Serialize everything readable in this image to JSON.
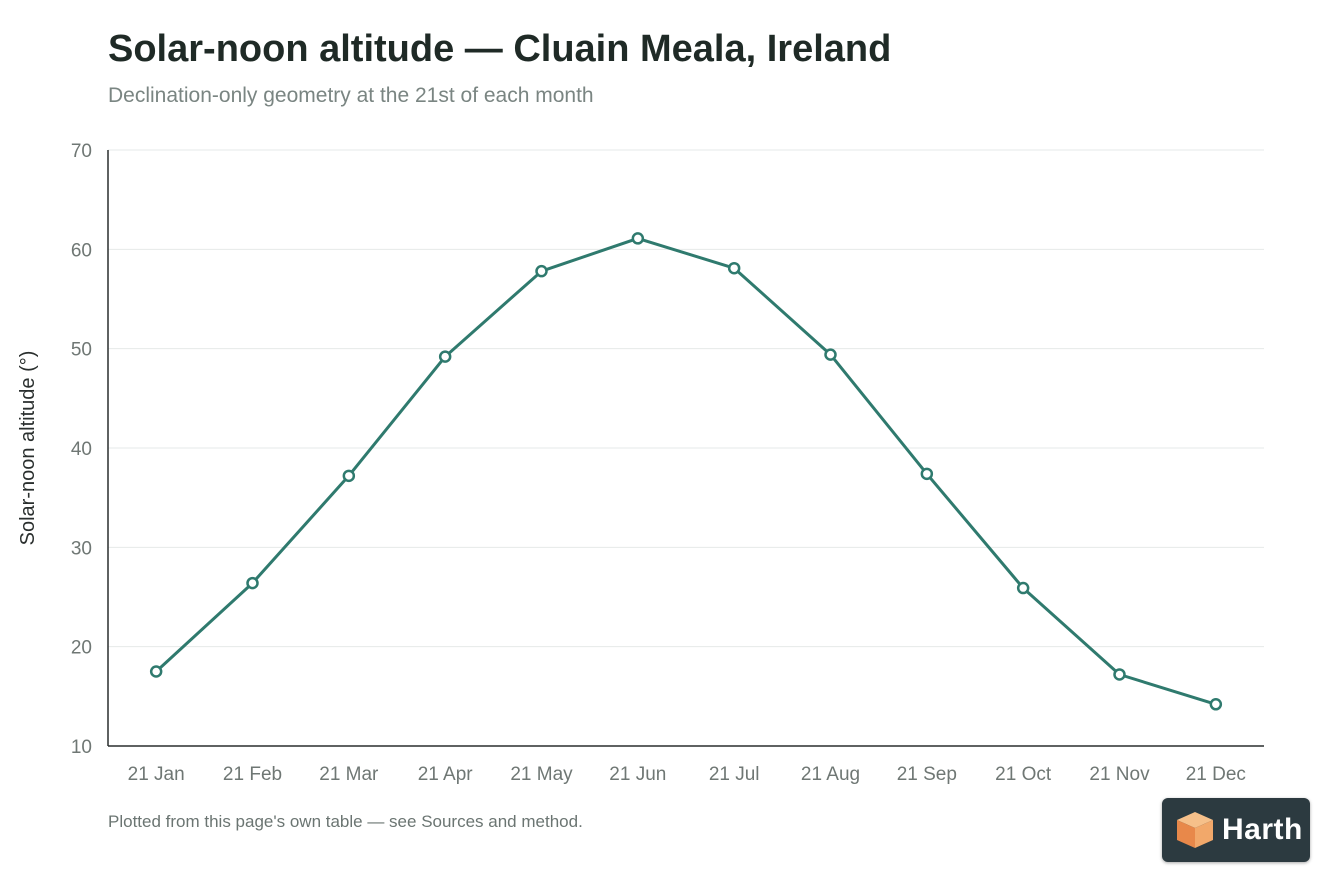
{
  "header": {
    "title": "Solar-noon altitude — Cluain Meala, Ireland",
    "subtitle": "Declination-only geometry at the 21st of each month"
  },
  "footnote": "Plotted from this page's own table — see Sources and method.",
  "logo": {
    "text": "Harth",
    "icon": "cube-icon"
  },
  "colors": {
    "line": "#2f7a6e",
    "grid": "#e6e9e8",
    "axis": "#2a2f2e",
    "tick_text": "#6f7774"
  },
  "chart_data": {
    "type": "line",
    "title": "Solar-noon altitude — Cluain Meala, Ireland",
    "subtitle": "Declination-only geometry at the 21st of each month",
    "xlabel": "",
    "ylabel": "Solar-noon altitude (°)",
    "categories": [
      "21 Jan",
      "21 Feb",
      "21 Mar",
      "21 Apr",
      "21 May",
      "21 Jun",
      "21 Jul",
      "21 Aug",
      "21 Sep",
      "21 Oct",
      "21 Nov",
      "21 Dec"
    ],
    "values": [
      17.5,
      26.4,
      37.2,
      49.2,
      57.8,
      61.1,
      58.1,
      49.4,
      37.4,
      25.9,
      17.2,
      14.2
    ],
    "ylim": [
      10,
      70
    ],
    "yticks": [
      10,
      20,
      30,
      40,
      50,
      60,
      70
    ],
    "grid": true,
    "legend": "none"
  }
}
